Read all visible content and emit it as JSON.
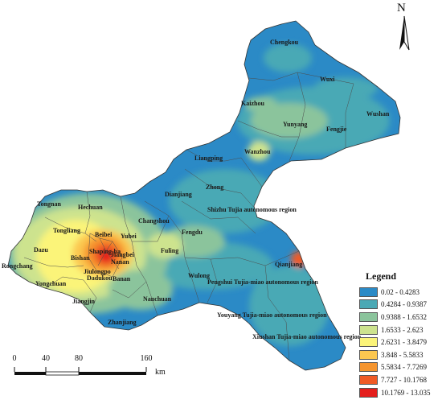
{
  "legend": {
    "title": "Legend",
    "classes": [
      {
        "label": "0.02 - 0.4283",
        "color": "#2b8ac6"
      },
      {
        "label": "0.4284 - 0.9387",
        "color": "#4aa9b5"
      },
      {
        "label": "0.9388 - 1.6532",
        "color": "#8bc49c"
      },
      {
        "label": "1.6533 - 2.623",
        "color": "#cde38e"
      },
      {
        "label": "2.6231 - 3.8479",
        "color": "#fbf479"
      },
      {
        "label": "3.848 - 5.5833",
        "color": "#fbc750"
      },
      {
        "label": "5.5834 - 7.7269",
        "color": "#f5952f"
      },
      {
        "label": "7.727 - 10.1768",
        "color": "#ef5a26"
      },
      {
        "label": "10.1769 - 13.035",
        "color": "#e41e1c"
      }
    ]
  },
  "north_arrow": {
    "label": "N"
  },
  "scale_bar": {
    "ticks": [
      "0",
      "40",
      "80",
      "160"
    ],
    "unit": "km"
  },
  "places": {
    "chengkou": "Chengkou",
    "wuxi": "Wuxi",
    "kaizhou": "Kaizhou",
    "yunyang": "Yunyang",
    "fengjie": "Fengjie",
    "wushan": "Wushan",
    "wanzhou": "Wanzhou",
    "liangping": "Liangping",
    "zhong": "Zhong",
    "dianjiang": "Dianjiang",
    "shizhu": "Shizhu Tujia autonomous region",
    "tongnan": "Tongnan",
    "hechuan": "Hechuan",
    "changshou": "Changshou",
    "tongliang": "Tongliang",
    "beibei": "Beibei",
    "yubei": "Yubei",
    "fengdu": "Fengdu",
    "dazu": "Dazu",
    "bishan": "Bishan",
    "shapingba": "Shaping-ba",
    "jiangbei": "Jiangbei",
    "nanan": "Nanan",
    "fuling": "Fuling",
    "rongchang": "Rongchang",
    "jiulongpo": "Jiulongpo",
    "dadukou": "Dadukou",
    "banan": "Banan",
    "yongchuan": "Yongchuan",
    "wulong": "Wulong",
    "pengshui": "Pengshui Tujia-miao autonomous region",
    "qianjiang": "Qianjiang",
    "jiangjin": "Jiangjin",
    "nanchuan": "Nanchuan",
    "zhanjiang": "Zhanjiang",
    "youyang": "Youyang Tujia-miao autonomous region",
    "xiushan": "Xiushan Tujia-miao autonomous region"
  }
}
